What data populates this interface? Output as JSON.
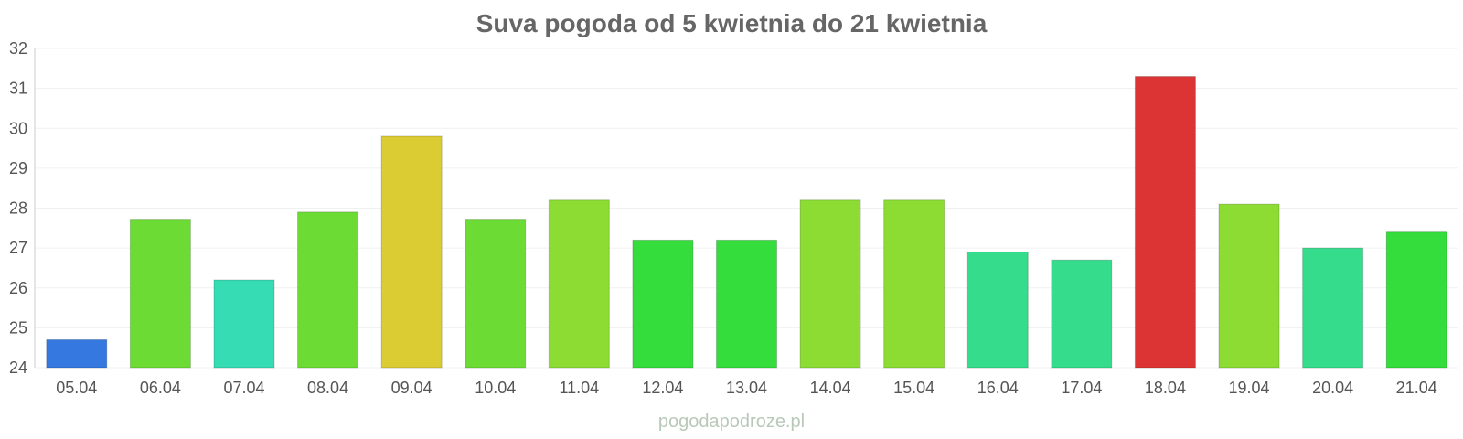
{
  "chart_data": {
    "type": "bar",
    "title": "Suva pogoda od 5 kwietnia do 21 kwietnia",
    "xlabel": "",
    "ylabel": "",
    "ylim": [
      24,
      32
    ],
    "yticks": [
      24,
      25,
      26,
      27,
      28,
      29,
      30,
      31,
      32
    ],
    "grid": true,
    "legend": "none",
    "categories": [
      "05.04",
      "06.04",
      "07.04",
      "08.04",
      "09.04",
      "10.04",
      "11.04",
      "12.04",
      "13.04",
      "14.04",
      "15.04",
      "16.04",
      "17.04",
      "18.04",
      "19.04",
      "20.04",
      "21.04"
    ],
    "values": [
      24.7,
      27.7,
      26.2,
      27.9,
      29.8,
      27.7,
      28.2,
      27.2,
      27.2,
      28.2,
      28.2,
      26.9,
      26.7,
      31.3,
      28.1,
      27.0,
      27.4
    ],
    "colors": [
      "#3478e0",
      "#6cdc34",
      "#36dcb4",
      "#6cdc34",
      "#dccc34",
      "#6cdc34",
      "#8cdc34",
      "#34dc3c",
      "#34dc3c",
      "#8cdc34",
      "#8cdc34",
      "#34dc8c",
      "#34dc8c",
      "#dc3434",
      "#8cdc34",
      "#34dc8c",
      "#34dc3c"
    ]
  },
  "watermark": "pogodapodroze.pl"
}
